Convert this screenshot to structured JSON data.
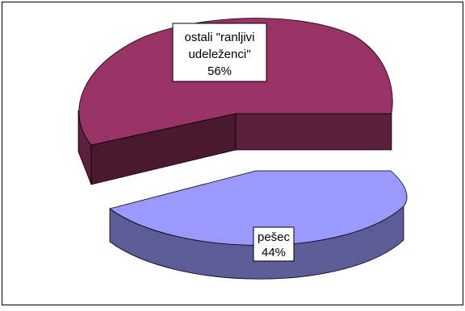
{
  "chart_data": {
    "type": "pie",
    "title": "",
    "style": "3d-exploded",
    "slices": [
      {
        "label_lines": [
          "ostali \"ranljivi",
          "udeleženci\"",
          "56%"
        ],
        "category": "ostali \"ranljivi udeleženci\"",
        "percent": 56,
        "color_top": "#993366",
        "color_side": "#5c1f3d",
        "color_wall": "#4a1830"
      },
      {
        "label_lines": [
          "pešec",
          "44%"
        ],
        "category": "pešec",
        "percent": 44,
        "color_top": "#9999ff",
        "color_side": "#5c5c99",
        "color_wall": "#4d4d80"
      }
    ]
  }
}
